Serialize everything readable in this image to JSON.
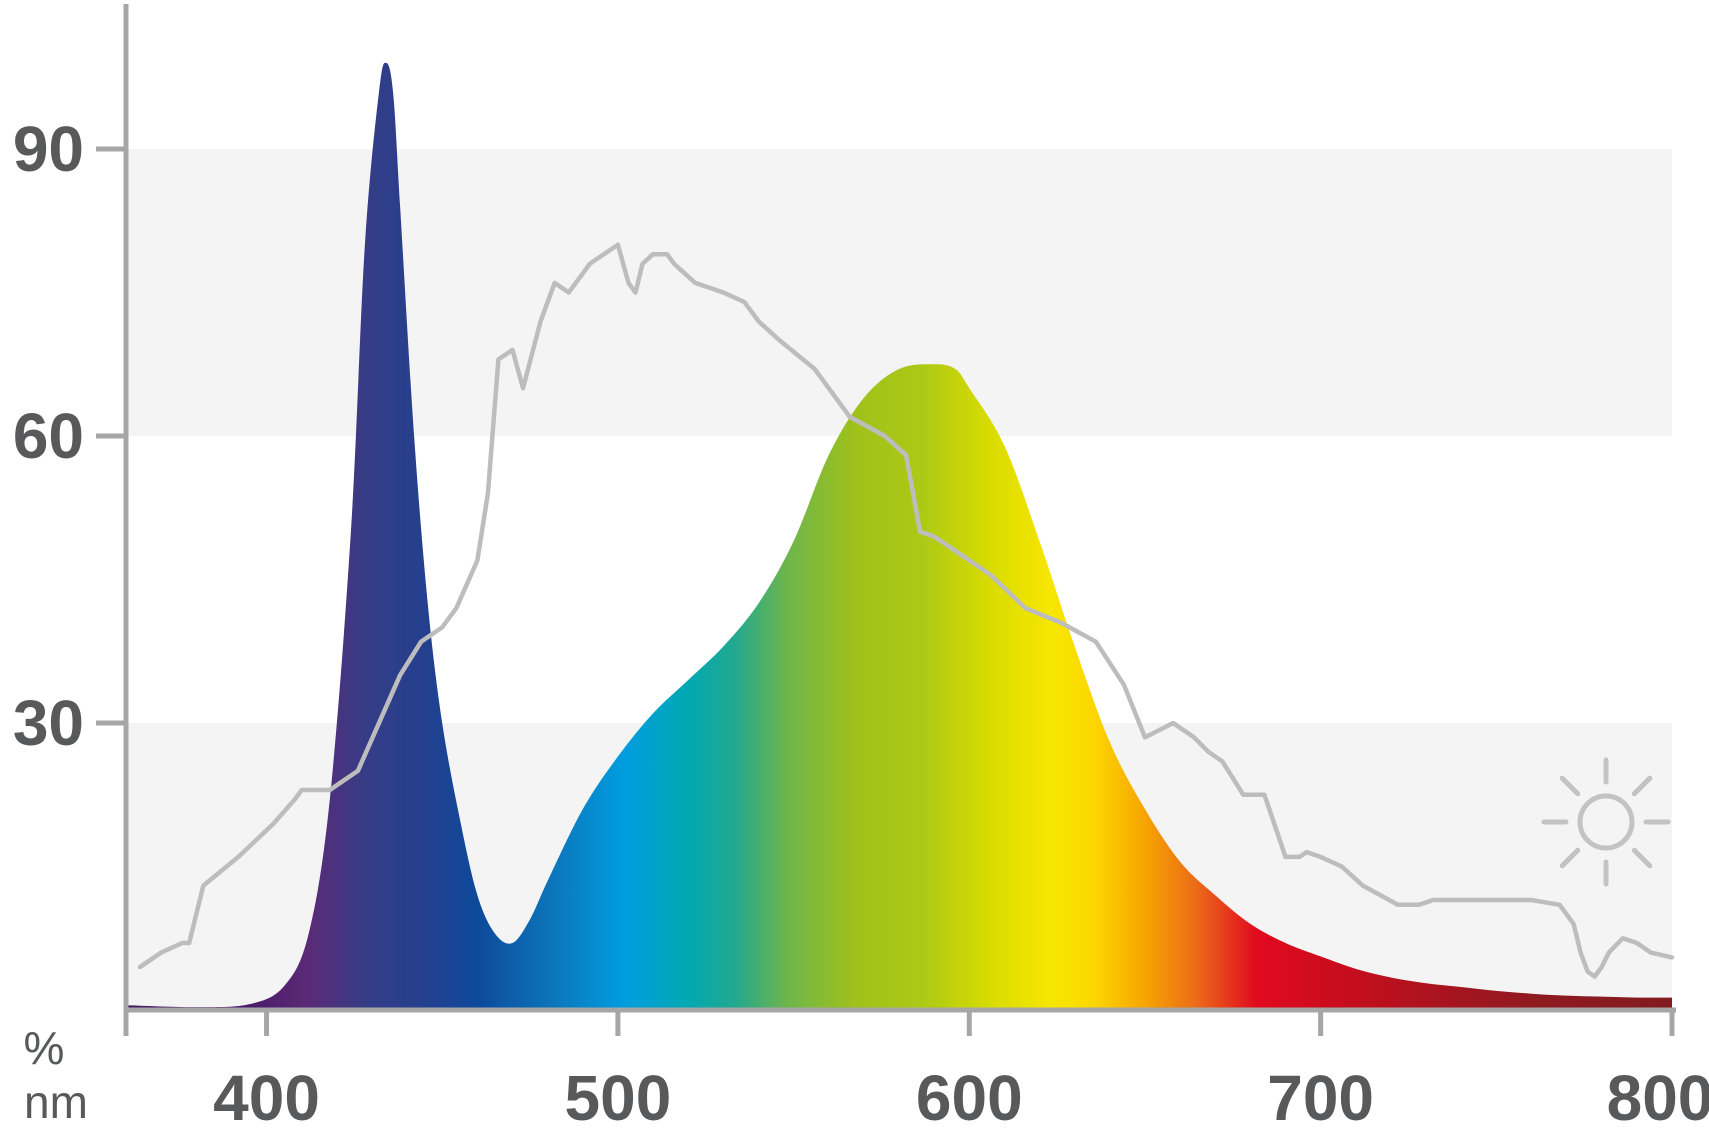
{
  "chart_data": {
    "type": "area",
    "title": "",
    "xlabel": "nm",
    "ylabel": "%",
    "xlim": [
      360,
      810
    ],
    "ylim": [
      0,
      100
    ],
    "x_ticks": [
      400,
      500,
      600,
      700,
      800
    ],
    "y_ticks": [
      30,
      60,
      90
    ],
    "grid_bands": [
      [
        0,
        30
      ],
      [
        60,
        90
      ]
    ],
    "colors": {
      "axis": "#a6a6a6",
      "band": "#f4f4f4",
      "reference": "#bdbdbd",
      "text": "#58595b",
      "icon": "#c3c3c3"
    },
    "icon": "sun-icon",
    "series": [
      {
        "type": "area",
        "fill": "visible-spectrum-gradient",
        "x": [
          360,
          380,
          395,
          405,
          412,
          418,
          424,
          428,
          432,
          434,
          436,
          438,
          442,
          446,
          450,
          455,
          460,
          465,
          470,
          475,
          480,
          490,
          500,
          510,
          520,
          530,
          540,
          550,
          560,
          570,
          580,
          590,
          596,
          600,
          610,
          620,
          630,
          640,
          650,
          660,
          670,
          680,
          690,
          700,
          710,
          720,
          730,
          740,
          750,
          760,
          770,
          780,
          790,
          800
        ],
        "y": [
          0.5,
          0.3,
          0.6,
          2.5,
          8,
          22,
          50,
          80,
          96,
          99,
          96,
          84,
          60,
          42,
          30,
          20,
          12,
          8,
          7,
          9.5,
          13.5,
          21,
          26.5,
          31,
          34.5,
          38,
          42.5,
          49,
          58,
          64,
          67,
          67.5,
          67,
          65,
          59,
          49,
          38,
          28,
          21,
          15.5,
          12,
          9,
          7,
          5.6,
          4.3,
          3.4,
          2.8,
          2.4,
          2,
          1.7,
          1.5,
          1.4,
          1.3,
          1.3
        ]
      },
      {
        "type": "line",
        "x": [
          364,
          370,
          376,
          378,
          382,
          392,
          402,
          408,
          410,
          418,
          426,
          432,
          438,
          444,
          450,
          454,
          460,
          463,
          466,
          470,
          473,
          478,
          482,
          486,
          490,
          492,
          496,
          500,
          503,
          505,
          507,
          510,
          514,
          516,
          522,
          530,
          536,
          540,
          546,
          556,
          566,
          576,
          582,
          584,
          586,
          590,
          596,
          606,
          616,
          626,
          636,
          644,
          650,
          658,
          664,
          668,
          672,
          678,
          684,
          690,
          694,
          696,
          700,
          706,
          712,
          722,
          728,
          732,
          740,
          748,
          760,
          768,
          772,
          774,
          776,
          778,
          780,
          782,
          786,
          790,
          794,
          800
        ],
        "y": [
          4.5,
          6,
          7,
          7,
          13,
          16,
          19.5,
          22,
          23,
          23,
          25,
          30,
          35,
          38.5,
          40,
          42,
          47,
          54,
          68,
          69,
          65,
          72,
          76,
          75,
          77,
          78,
          79,
          80,
          76,
          75,
          78,
          79,
          79,
          78,
          76,
          75,
          74,
          72,
          70,
          67,
          62,
          60,
          58,
          54,
          50,
          49.5,
          48,
          45.5,
          42,
          40.5,
          38.5,
          34,
          28.5,
          30,
          28.5,
          27,
          26,
          22.5,
          22.5,
          16,
          16,
          16.5,
          16,
          15,
          13,
          11,
          11,
          11.5,
          11.5,
          11.5,
          11.5,
          11,
          9,
          6,
          4,
          3.5,
          4.5,
          6,
          7.5,
          7,
          6,
          5.5
        ]
      }
    ]
  },
  "axes": {
    "y_unit": "%",
    "x_unit": "nm"
  }
}
